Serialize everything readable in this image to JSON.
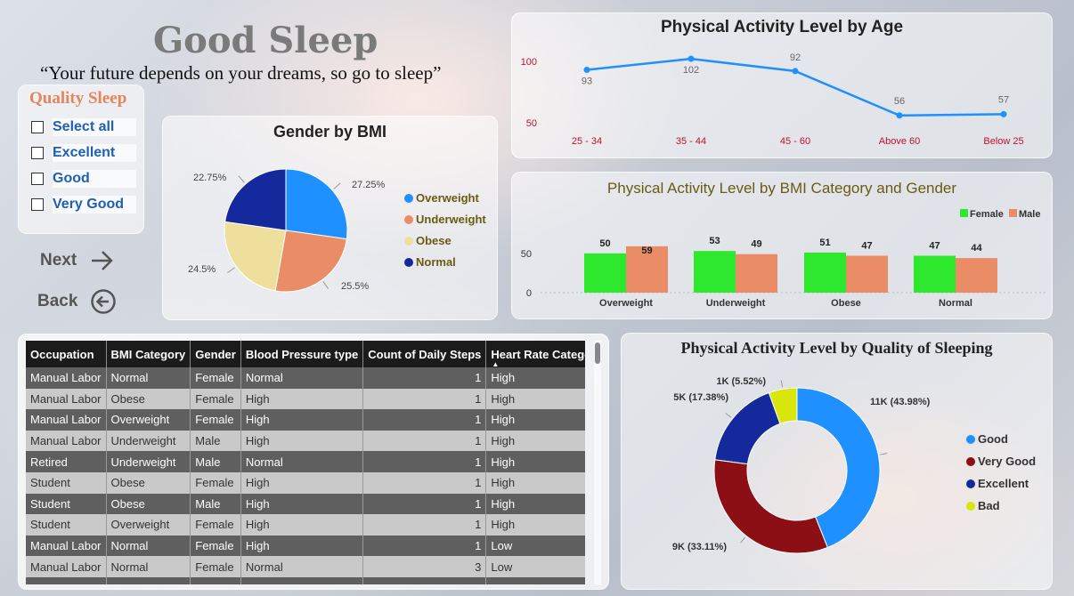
{
  "header": {
    "title": "Good Sleep",
    "quote": "“Your future depends on your dreams, so go to sleep”"
  },
  "slicer": {
    "title": "Quality Sleep",
    "items": [
      "Select all",
      "Excellent",
      "Good",
      "Very Good"
    ]
  },
  "nav": {
    "next_label": "Next",
    "back_label": "Back"
  },
  "colors": {
    "accent_orange": "#e8835c",
    "blue": "#1e90ff",
    "navy": "#142a9c",
    "cream": "#efdf9c",
    "green": "#2ee82e",
    "salmon": "#ea8c65",
    "maroon": "#8b0f15",
    "yellow": "#d9e60c"
  },
  "chart_data": [
    {
      "id": "gender_by_bmi",
      "type": "pie",
      "title": "Gender by BMI",
      "slices": [
        {
          "label": "Overweight",
          "value": 27.25,
          "display": "27.25%",
          "color": "#1e90ff"
        },
        {
          "label": "Underweight",
          "value": 25.5,
          "display": "25.5%",
          "color": "#ea8c65"
        },
        {
          "label": "Obese",
          "value": 24.5,
          "display": "24.5%",
          "color": "#efdf9c"
        },
        {
          "label": "Normal",
          "value": 22.75,
          "display": "22.75%",
          "color": "#142a9c"
        }
      ]
    },
    {
      "id": "activity_by_age",
      "type": "line",
      "title": "Physical Activity Level by Age",
      "categories": [
        "25 - 34",
        "35 - 44",
        "45 - 60",
        "Above 60",
        "Below 25"
      ],
      "values": [
        93,
        102,
        92,
        56,
        57
      ],
      "yticks": [
        50,
        100
      ],
      "ylim": [
        45,
        110
      ],
      "color": "#1e90ff"
    },
    {
      "id": "activity_by_bmi_gender",
      "type": "bar",
      "title": "Physical Activity Level by BMI Category and Gender",
      "categories": [
        "Overweight",
        "Underweight",
        "Obese",
        "Normal"
      ],
      "series": [
        {
          "name": "Female",
          "values": [
            50,
            53,
            51,
            47
          ],
          "color": "#2ee82e"
        },
        {
          "name": "Male",
          "values": [
            59,
            49,
            47,
            44
          ],
          "color": "#ea8c65"
        }
      ],
      "yticks": [
        0,
        50
      ],
      "ylim": [
        0,
        60
      ]
    },
    {
      "id": "activity_by_quality",
      "type": "pie",
      "title": "Physical Activity Level by Quality of Sleeping",
      "donut": true,
      "slices": [
        {
          "label": "Good",
          "value": 43.98,
          "display": "11K (43.98%)",
          "color": "#1e90ff"
        },
        {
          "label": "Very Good",
          "value": 33.11,
          "display": "9K (33.11%)",
          "color": "#8b0f15"
        },
        {
          "label": "Excellent",
          "value": 17.38,
          "display": "5K (17.38%)",
          "color": "#142a9c"
        },
        {
          "label": "Bad",
          "value": 5.52,
          "display": "1K (5.52%)",
          "color": "#d9e60c"
        }
      ]
    }
  ],
  "table": {
    "columns": [
      "Occupation",
      "BMI Category",
      "Gender",
      "Blood Pressure type",
      "Count of Daily Steps",
      "Heart Rate Category"
    ],
    "rows": [
      [
        "Manual Labor",
        "Normal",
        "Female",
        "Normal",
        "1",
        "High"
      ],
      [
        "Manual Labor",
        "Obese",
        "Female",
        "High",
        "1",
        "High"
      ],
      [
        "Manual Labor",
        "Overweight",
        "Female",
        "High",
        "1",
        "High"
      ],
      [
        "Manual Labor",
        "Underweight",
        "Male",
        "High",
        "1",
        "High"
      ],
      [
        "Retired",
        "Underweight",
        "Male",
        "Normal",
        "1",
        "High"
      ],
      [
        "Student",
        "Obese",
        "Female",
        "High",
        "1",
        "High"
      ],
      [
        "Student",
        "Obese",
        "Male",
        "High",
        "1",
        "High"
      ],
      [
        "Student",
        "Overweight",
        "Female",
        "High",
        "1",
        "High"
      ],
      [
        "Manual Labor",
        "Normal",
        "Female",
        "High",
        "1",
        "Low"
      ],
      [
        "Manual Labor",
        "Normal",
        "Female",
        "Normal",
        "3",
        "Low"
      ]
    ]
  }
}
